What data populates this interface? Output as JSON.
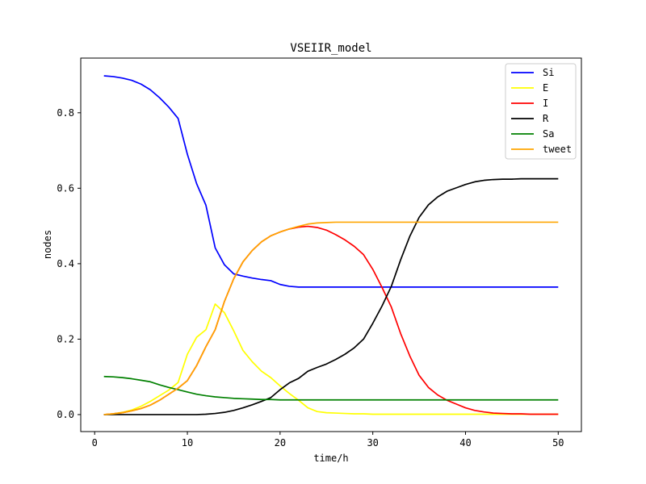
{
  "chart_data": {
    "type": "line",
    "title": "VSEIIR_model",
    "xlabel": "time/h",
    "ylabel": "nodes",
    "xlim": [
      -1.5,
      52.5
    ],
    "ylim": [
      -0.045,
      0.945
    ],
    "xticks": [
      0,
      10,
      20,
      30,
      40,
      50
    ],
    "yticks": [
      0.0,
      0.2,
      0.4,
      0.6,
      0.8
    ],
    "xtick_labels": [
      "0",
      "10",
      "20",
      "30",
      "40",
      "50"
    ],
    "ytick_labels": [
      "0.0",
      "0.2",
      "0.4",
      "0.6",
      "0.8"
    ],
    "grid": false,
    "legend_position": "top-right",
    "x": [
      1,
      2,
      3,
      4,
      5,
      6,
      7,
      8,
      9,
      10,
      11,
      12,
      13,
      14,
      15,
      16,
      17,
      18,
      19,
      20,
      21,
      22,
      23,
      24,
      25,
      26,
      27,
      28,
      29,
      30,
      31,
      32,
      33,
      34,
      35,
      36,
      37,
      38,
      39,
      40,
      41,
      42,
      43,
      44,
      45,
      46,
      47,
      48,
      49,
      50
    ],
    "series": [
      {
        "name": "Si",
        "color": "#0000ff",
        "values": [
          0.898,
          0.896,
          0.892,
          0.886,
          0.876,
          0.861,
          0.84,
          0.815,
          0.785,
          0.69,
          0.612,
          0.555,
          0.442,
          0.397,
          0.373,
          0.367,
          0.362,
          0.358,
          0.355,
          0.345,
          0.34,
          0.338,
          0.338,
          0.338,
          0.338,
          0.338,
          0.338,
          0.338,
          0.338,
          0.338,
          0.338,
          0.338,
          0.338,
          0.338,
          0.338,
          0.338,
          0.338,
          0.338,
          0.338,
          0.338,
          0.338,
          0.338,
          0.338,
          0.338,
          0.338,
          0.338,
          0.338,
          0.338,
          0.338,
          0.338
        ]
      },
      {
        "name": "E",
        "color": "#ffff00",
        "values": [
          0.0,
          0.002,
          0.006,
          0.012,
          0.022,
          0.035,
          0.05,
          0.065,
          0.085,
          0.16,
          0.205,
          0.225,
          0.293,
          0.27,
          0.222,
          0.17,
          0.14,
          0.115,
          0.098,
          0.076,
          0.056,
          0.038,
          0.018,
          0.008,
          0.005,
          0.004,
          0.003,
          0.002,
          0.002,
          0.001,
          0.001,
          0.001,
          0.001,
          0.001,
          0.001,
          0.001,
          0.001,
          0.001,
          0.001,
          0.001,
          0.001,
          0.001,
          0.001,
          0.001,
          0.001,
          0.001,
          0.001,
          0.001,
          0.001,
          0.001
        ]
      },
      {
        "name": "I",
        "color": "#ff0000",
        "values": [
          0.0,
          0.002,
          0.005,
          0.01,
          0.016,
          0.025,
          0.038,
          0.054,
          0.07,
          0.09,
          0.13,
          0.18,
          0.225,
          0.3,
          0.36,
          0.405,
          0.435,
          0.458,
          0.474,
          0.484,
          0.492,
          0.497,
          0.499,
          0.496,
          0.489,
          0.477,
          0.463,
          0.446,
          0.424,
          0.385,
          0.337,
          0.285,
          0.215,
          0.155,
          0.104,
          0.072,
          0.052,
          0.038,
          0.028,
          0.018,
          0.011,
          0.007,
          0.004,
          0.003,
          0.002,
          0.002,
          0.001,
          0.001,
          0.001,
          0.001
        ]
      },
      {
        "name": "R",
        "color": "#000000",
        "values": [
          0.0,
          0.0,
          0.0,
          0.0,
          0.0,
          0.0,
          0.0,
          0.0,
          0.0,
          0.0,
          0.0,
          0.001,
          0.003,
          0.006,
          0.011,
          0.018,
          0.026,
          0.035,
          0.045,
          0.066,
          0.084,
          0.096,
          0.115,
          0.125,
          0.134,
          0.146,
          0.16,
          0.177,
          0.2,
          0.242,
          0.288,
          0.34,
          0.41,
          0.473,
          0.523,
          0.556,
          0.577,
          0.592,
          0.601,
          0.61,
          0.617,
          0.621,
          0.623,
          0.624,
          0.624,
          0.625,
          0.625,
          0.625,
          0.625,
          0.625
        ]
      },
      {
        "name": "Sa",
        "color": "#008000",
        "values": [
          0.101,
          0.1,
          0.098,
          0.095,
          0.091,
          0.087,
          0.079,
          0.072,
          0.066,
          0.06,
          0.054,
          0.05,
          0.047,
          0.045,
          0.043,
          0.042,
          0.041,
          0.04,
          0.04,
          0.039,
          0.039,
          0.039,
          0.039,
          0.039,
          0.039,
          0.039,
          0.039,
          0.039,
          0.039,
          0.039,
          0.039,
          0.039,
          0.039,
          0.039,
          0.039,
          0.039,
          0.039,
          0.039,
          0.039,
          0.039,
          0.039,
          0.039,
          0.039,
          0.039,
          0.039,
          0.039,
          0.039,
          0.039,
          0.039,
          0.039
        ]
      },
      {
        "name": "tweet",
        "color": "#ffa500",
        "values": [
          0.0,
          0.002,
          0.005,
          0.01,
          0.016,
          0.025,
          0.038,
          0.054,
          0.07,
          0.09,
          0.13,
          0.18,
          0.225,
          0.3,
          0.36,
          0.405,
          0.435,
          0.458,
          0.474,
          0.484,
          0.492,
          0.499,
          0.505,
          0.508,
          0.509,
          0.51,
          0.51,
          0.51,
          0.51,
          0.51,
          0.51,
          0.51,
          0.51,
          0.51,
          0.51,
          0.51,
          0.51,
          0.51,
          0.51,
          0.51,
          0.51,
          0.51,
          0.51,
          0.51,
          0.51,
          0.51,
          0.51,
          0.51,
          0.51,
          0.51
        ]
      }
    ]
  }
}
